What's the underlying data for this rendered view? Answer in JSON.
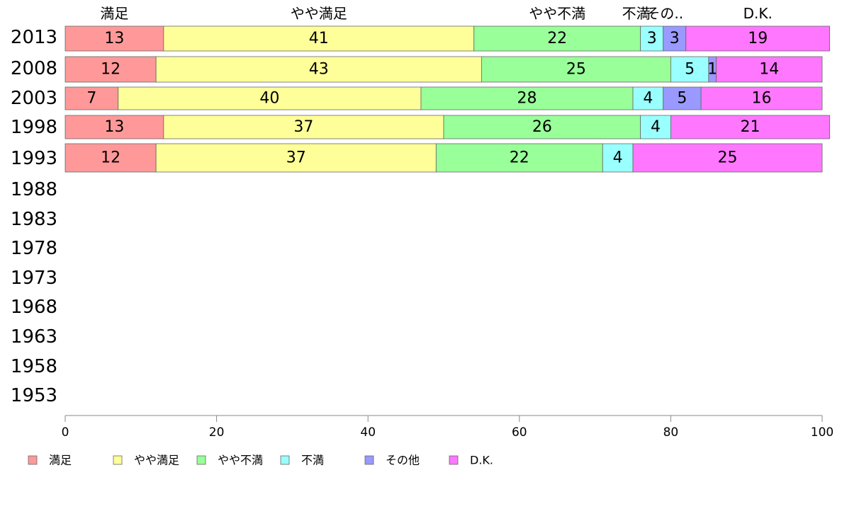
{
  "chart_data": {
    "type": "bar",
    "orientation": "horizontal",
    "stacked": true,
    "categories": [
      "2013",
      "2008",
      "2003",
      "1998",
      "1993",
      "1988",
      "1983",
      "1978",
      "1973",
      "1968",
      "1963",
      "1958",
      "1953"
    ],
    "series": [
      {
        "name": "満足",
        "color": "#ff9999",
        "values": [
          13,
          12,
          7,
          13,
          12,
          null,
          null,
          null,
          null,
          null,
          null,
          null,
          null
        ]
      },
      {
        "name": "やや満足",
        "color": "#ffff99",
        "values": [
          41,
          43,
          40,
          37,
          37,
          null,
          null,
          null,
          null,
          null,
          null,
          null,
          null
        ]
      },
      {
        "name": "やや不満",
        "color": "#99ff99",
        "values": [
          22,
          25,
          28,
          26,
          22,
          null,
          null,
          null,
          null,
          null,
          null,
          null,
          null
        ]
      },
      {
        "name": "不満",
        "color": "#99ffff",
        "values": [
          3,
          5,
          4,
          4,
          4,
          null,
          null,
          null,
          null,
          null,
          null,
          null,
          null
        ]
      },
      {
        "name": "その他",
        "color": "#9999ff",
        "values": [
          3,
          1,
          5,
          0,
          0,
          null,
          null,
          null,
          null,
          null,
          null,
          null,
          null
        ]
      },
      {
        "name": "D.K.",
        "color": "#ff77ff",
        "values": [
          19,
          14,
          16,
          21,
          25,
          null,
          null,
          null,
          null,
          null,
          null,
          null,
          null
        ]
      }
    ],
    "top_labels": [
      "満足",
      "やや満足",
      "やや不満",
      "不満",
      "その..",
      "D.K."
    ],
    "xlim": [
      0,
      100
    ],
    "xticks": [
      "0",
      "20",
      "40",
      "60",
      "80",
      "100"
    ],
    "legend_position": "bottom-left",
    "grid": false
  }
}
